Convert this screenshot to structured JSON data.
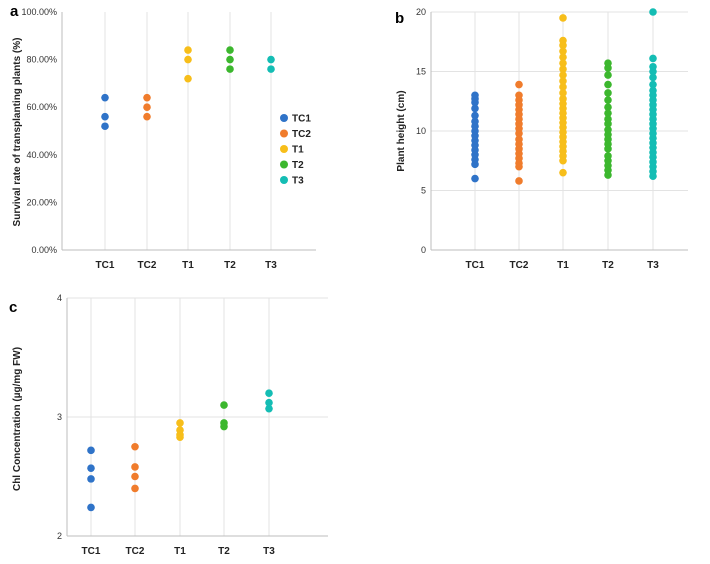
{
  "colors": {
    "TC1": "#2F73C8",
    "TC2": "#F07C2C",
    "T1": "#F7BE1A",
    "T2": "#3CB72E",
    "T3": "#14BDB4",
    "grid": "#e3e3e3"
  },
  "chart_data": [
    {
      "panel": "a",
      "type": "scatter",
      "ylabel": "Survival rate of transplanting plants (%)",
      "xlabel": "",
      "categories": [
        "TC1",
        "TC2",
        "T1",
        "T2",
        "T3"
      ],
      "ylim": [
        0,
        100
      ],
      "yticks": [
        0,
        20,
        40,
        60,
        80,
        100
      ],
      "ytick_labels": [
        "0.00%",
        "20.00%",
        "40.00%",
        "60.00%",
        "80.00%",
        "100.00%"
      ],
      "grid": "vertical",
      "legend": {
        "placement": "right",
        "entries": [
          "TC1",
          "TC2",
          "T1",
          "T2",
          "T3"
        ]
      },
      "series": [
        {
          "name": "TC1",
          "values": [
            64,
            56,
            52
          ]
        },
        {
          "name": "TC2",
          "values": [
            64,
            60,
            56
          ]
        },
        {
          "name": "T1",
          "values": [
            84,
            80,
            72
          ]
        },
        {
          "name": "T2",
          "values": [
            84,
            80,
            76
          ]
        },
        {
          "name": "T3",
          "values": [
            80,
            76
          ]
        }
      ]
    },
    {
      "panel": "b",
      "type": "scatter",
      "ylabel": "Plant height (cm)",
      "xlabel": "",
      "categories": [
        "TC1",
        "TC2",
        "T1",
        "T2",
        "T3"
      ],
      "ylim": [
        0,
        20
      ],
      "yticks": [
        0,
        5,
        10,
        15,
        20
      ],
      "ytick_labels": [
        "0",
        "5",
        "10",
        "15",
        "20"
      ],
      "grid": "both",
      "series": [
        {
          "name": "TC1",
          "values": [
            6.0,
            7.2,
            7.6,
            8.0,
            8.4,
            8.8,
            9.2,
            9.6,
            10.0,
            10.4,
            10.8,
            11.3,
            11.9,
            12.4,
            12.7,
            13.0
          ]
        },
        {
          "name": "TC2",
          "values": [
            5.8,
            7.0,
            7.3,
            7.7,
            8.1,
            8.5,
            8.9,
            9.3,
            9.8,
            10.2,
            10.6,
            11.0,
            11.4,
            11.8,
            12.2,
            12.6,
            13.0,
            13.9
          ]
        },
        {
          "name": "T1",
          "values": [
            6.5,
            7.5,
            7.9,
            8.3,
            8.7,
            9.1,
            9.5,
            9.9,
            10.3,
            10.7,
            11.1,
            11.5,
            11.9,
            12.3,
            12.7,
            13.2,
            13.7,
            14.2,
            14.7,
            15.2,
            15.7,
            16.2,
            16.7,
            17.2,
            17.6,
            19.5
          ]
        },
        {
          "name": "T2",
          "values": [
            6.3,
            6.7,
            7.1,
            7.5,
            7.9,
            8.5,
            8.9,
            9.3,
            9.7,
            10.1,
            10.6,
            11.0,
            11.5,
            12.0,
            12.6,
            13.2,
            13.9,
            14.7,
            15.3,
            15.7
          ]
        },
        {
          "name": "T3",
          "values": [
            6.2,
            6.6,
            7.0,
            7.4,
            7.8,
            8.2,
            8.6,
            9.0,
            9.4,
            9.8,
            10.2,
            10.6,
            11.0,
            11.4,
            11.8,
            12.2,
            12.6,
            13.0,
            13.4,
            13.9,
            14.5,
            15.0,
            15.4,
            16.1,
            20.0
          ]
        }
      ]
    },
    {
      "panel": "c",
      "type": "scatter",
      "ylabel": "Chl Concentration (µg/mg FW)",
      "xlabel": "",
      "categories": [
        "TC1",
        "TC2",
        "T1",
        "T2",
        "T3"
      ],
      "ylim": [
        2,
        4
      ],
      "yticks": [
        2,
        3,
        4
      ],
      "ytick_labels": [
        "2",
        "3",
        "4"
      ],
      "grid": "both",
      "series": [
        {
          "name": "TC1",
          "values": [
            2.72,
            2.57,
            2.48,
            2.24
          ]
        },
        {
          "name": "TC2",
          "values": [
            2.75,
            2.58,
            2.5,
            2.4
          ]
        },
        {
          "name": "T1",
          "values": [
            2.95,
            2.89,
            2.85,
            2.83
          ]
        },
        {
          "name": "T2",
          "values": [
            3.1,
            2.95,
            2.92
          ]
        },
        {
          "name": "T3",
          "values": [
            3.2,
            3.12,
            3.07
          ]
        }
      ]
    }
  ]
}
